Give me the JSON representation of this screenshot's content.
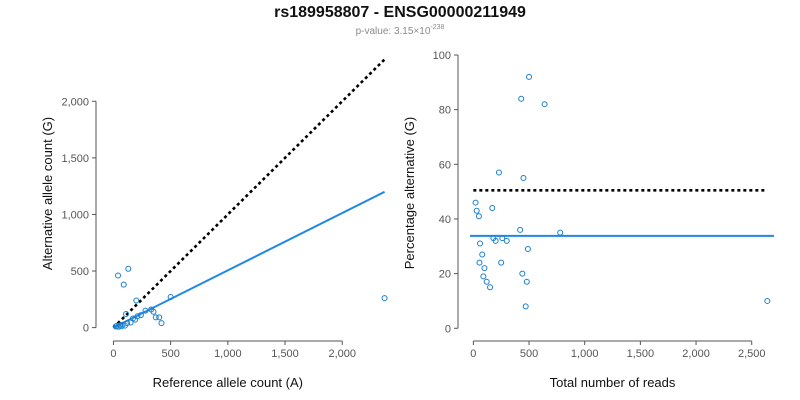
{
  "header": {
    "title": "rs189958807 - ENSG00000211949",
    "pvalue_prefix": "p-value: 3.15×10",
    "pvalue_exponent": "-238"
  },
  "colors": {
    "points": "#1a7ecf",
    "fit_line": "#1e88e5",
    "reference_line": "#000000",
    "axis": "#555555"
  },
  "chart_data": [
    {
      "type": "scatter",
      "title": "",
      "xlabel": "Reference allele count (A)",
      "ylabel": "Alternative allele count (G)",
      "xlim": [
        -30,
        2400
      ],
      "ylim": [
        -30,
        2400
      ],
      "x_ticks": [
        0,
        500,
        1000,
        1500,
        2000
      ],
      "x_tick_labels": [
        "0",
        "500",
        "1,000",
        "1,500",
        "2,000"
      ],
      "y_ticks": [
        0,
        500,
        1000,
        1500,
        2000
      ],
      "y_tick_labels": [
        "0",
        "500",
        "1,000",
        "1,500",
        "2,000"
      ],
      "grid": false,
      "points": [
        [
          40,
          460
        ],
        [
          90,
          380
        ],
        [
          130,
          520
        ],
        [
          200,
          240
        ],
        [
          2370,
          260
        ],
        [
          20,
          10
        ],
        [
          30,
          15
        ],
        [
          45,
          8
        ],
        [
          55,
          20
        ],
        [
          70,
          12
        ],
        [
          80,
          25
        ],
        [
          100,
          18
        ],
        [
          110,
          120
        ],
        [
          120,
          40
        ],
        [
          150,
          45
        ],
        [
          170,
          80
        ],
        [
          190,
          70
        ],
        [
          210,
          100
        ],
        [
          240,
          110
        ],
        [
          280,
          150
        ],
        [
          330,
          160
        ],
        [
          350,
          140
        ],
        [
          370,
          90
        ],
        [
          400,
          90
        ],
        [
          420,
          40
        ],
        [
          500,
          270
        ]
      ],
      "lines": [
        {
          "style": "dotted",
          "role": "reference",
          "x": [
            0,
            2370
          ],
          "y": [
            0,
            2370
          ]
        },
        {
          "style": "solid",
          "role": "fit",
          "x": [
            0,
            2370
          ],
          "y": [
            0,
            1200
          ]
        }
      ]
    },
    {
      "type": "scatter",
      "title": "",
      "xlabel": "Total number of reads",
      "ylabel": "Percentage alternative (G)",
      "xlim": [
        -30,
        2700
      ],
      "ylim": [
        -1,
        100
      ],
      "x_ticks": [
        0,
        500,
        1000,
        1500,
        2000,
        2500
      ],
      "x_tick_labels": [
        "0",
        "500",
        "1,000",
        "1,500",
        "2,000",
        "2,500"
      ],
      "y_ticks": [
        0,
        20,
        40,
        60,
        80,
        100
      ],
      "y_tick_labels": [
        "0",
        "20",
        "40",
        "60",
        "80",
        "100"
      ],
      "grid": false,
      "points": [
        [
          20,
          46
        ],
        [
          30,
          43
        ],
        [
          50,
          41
        ],
        [
          60,
          31
        ],
        [
          55,
          24
        ],
        [
          80,
          27
        ],
        [
          90,
          19
        ],
        [
          100,
          22
        ],
        [
          120,
          17
        ],
        [
          150,
          15
        ],
        [
          170,
          44
        ],
        [
          180,
          33
        ],
        [
          200,
          32
        ],
        [
          230,
          57
        ],
        [
          250,
          24
        ],
        [
          260,
          33
        ],
        [
          300,
          32
        ],
        [
          420,
          36
        ],
        [
          430,
          84
        ],
        [
          450,
          55
        ],
        [
          440,
          20
        ],
        [
          470,
          8
        ],
        [
          480,
          17
        ],
        [
          490,
          29
        ],
        [
          500,
          92
        ],
        [
          640,
          82
        ],
        [
          780,
          35
        ],
        [
          2640,
          10
        ]
      ],
      "lines": [
        {
          "style": "dotted",
          "role": "reference",
          "x": [
            0,
            2640
          ],
          "y": [
            50.5,
            50.5
          ]
        },
        {
          "style": "solid",
          "role": "fit",
          "x": [
            -30,
            2700
          ],
          "y": [
            33.8,
            33.8
          ]
        }
      ]
    }
  ]
}
